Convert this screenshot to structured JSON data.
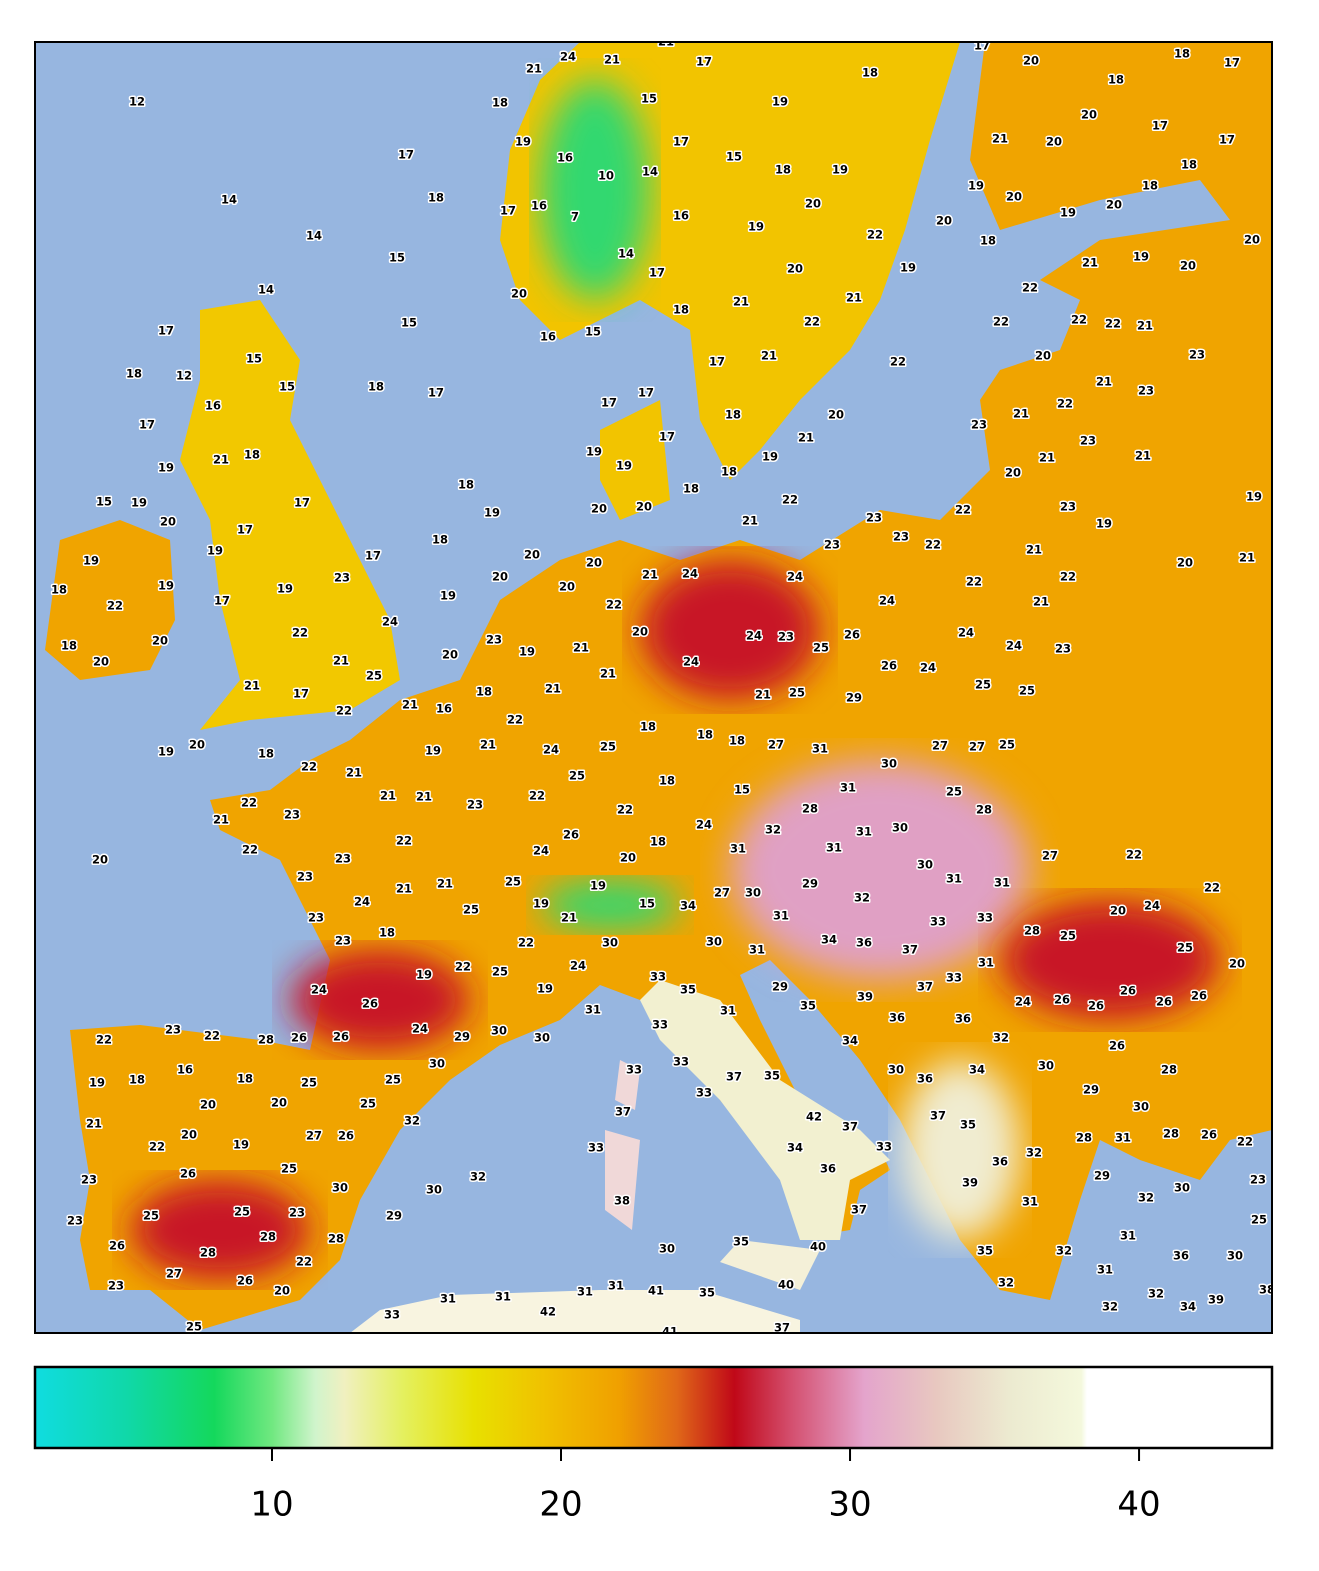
{
  "colorbar": {
    "lim": [
      1.8,
      44.6
    ],
    "ticks": [
      10,
      20,
      30,
      40
    ],
    "colormap": [
      {
        "value": 1.8,
        "color": "#10dce0"
      },
      {
        "value": 5,
        "color": "#10d8a8"
      },
      {
        "value": 8,
        "color": "#14d85c"
      },
      {
        "value": 10,
        "color": "#70e880"
      },
      {
        "value": 11.5,
        "color": "#d0f4cc"
      },
      {
        "value": 12.5,
        "color": "#f0f0c0"
      },
      {
        "value": 14.5,
        "color": "#e4f060"
      },
      {
        "value": 17,
        "color": "#e8e000"
      },
      {
        "value": 19.5,
        "color": "#f0c000"
      },
      {
        "value": 22,
        "color": "#f0a000"
      },
      {
        "value": 24,
        "color": "#e06818"
      },
      {
        "value": 26,
        "color": "#c00818"
      },
      {
        "value": 28,
        "color": "#d45070"
      },
      {
        "value": 30.5,
        "color": "#e4a4cc"
      },
      {
        "value": 33,
        "color": "#e8c8c0"
      },
      {
        "value": 35.5,
        "color": "#ecead0"
      },
      {
        "value": 38,
        "color": "#f4f8dc"
      },
      {
        "value": 38.2,
        "color": "#ffffff"
      },
      {
        "value": 44.6,
        "color": "#ffffff"
      }
    ]
  },
  "labels": [
    21,
    24,
    21,
    21,
    17,
    15,
    18,
    19,
    18,
    12,
    19,
    16,
    17,
    15,
    10,
    14,
    18,
    19,
    17,
    14,
    18,
    17,
    16,
    7,
    16,
    19,
    20,
    22,
    14,
    15,
    14,
    17,
    20,
    19,
    20,
    14,
    21,
    21,
    18,
    15,
    16,
    15,
    22,
    17,
    15,
    17,
    21,
    22,
    18,
    12,
    15,
    18,
    17,
    16,
    17,
    17,
    17,
    18,
    20,
    17,
    21,
    19,
    19,
    18,
    21,
    19,
    18,
    18,
    19,
    18,
    19,
    20,
    20,
    22,
    21,
    15,
    19,
    20,
    17,
    17,
    18,
    20,
    20,
    21,
    24,
    24,
    23,
    23,
    23,
    22,
    22,
    19,
    19,
    17,
    20,
    20,
    22,
    19,
    19,
    18,
    19,
    23,
    22,
    17,
    24,
    20,
    24,
    23,
    25,
    26,
    24,
    24,
    22,
    20,
    18,
    20,
    22,
    23,
    19,
    21,
    24,
    26,
    24,
    24,
    23,
    20,
    21,
    25,
    21,
    21,
    21,
    17,
    18,
    21,
    25,
    29,
    25,
    25,
    21,
    16,
    22,
    22,
    18,
    18,
    18,
    27,
    31,
    27,
    27,
    25,
    19,
    20,
    18,
    19,
    21,
    24,
    25,
    22,
    21,
    25,
    18,
    30,
    22,
    23,
    21,
    21,
    21,
    23,
    22,
    22,
    15,
    28,
    31,
    25,
    28,
    22,
    22,
    26,
    24,
    24,
    32,
    31,
    30,
    18,
    31,
    31,
    20,
    23,
    20,
    27,
    22,
    23,
    21,
    21,
    25,
    19,
    27,
    30,
    29,
    32,
    30,
    31,
    31,
    22,
    23,
    24,
    25,
    19,
    21,
    15,
    34,
    31,
    20,
    24,
    23,
    18,
    22,
    30,
    30,
    31,
    34,
    36,
    37,
    33,
    33,
    28,
    25,
    25,
    19,
    22,
    25,
    24,
    33,
    35,
    29,
    37,
    33,
    31,
    20,
    24,
    26,
    19,
    31,
    31,
    35,
    39,
    36,
    36,
    24,
    26,
    26,
    26,
    26,
    26,
    22,
    23,
    22,
    28,
    26,
    26,
    24,
    29,
    30,
    30,
    33,
    34,
    32,
    26,
    19,
    18,
    16,
    18,
    25,
    25,
    30,
    33,
    33,
    37,
    35,
    30,
    36,
    34,
    30,
    28,
    20,
    20,
    25,
    32,
    33,
    42,
    37,
    29,
    30,
    21,
    20,
    22,
    19,
    27,
    26,
    37,
    33,
    34,
    33,
    37,
    35,
    28,
    31,
    28,
    26,
    22,
    23,
    26,
    25,
    30,
    30,
    32,
    36,
    36,
    32,
    29,
    30,
    23,
    23,
    25,
    25,
    23,
    29,
    38,
    37,
    39,
    31,
    32,
    25,
    26,
    28,
    28,
    28,
    30,
    35,
    40,
    31,
    36,
    30,
    35,
    32,
    23,
    27,
    26,
    22,
    20,
    31,
    32,
    40,
    32,
    31,
    31,
    31,
    31,
    41,
    35,
    39,
    38,
    34,
    32,
    33,
    42,
    25,
    41,
    37,
    17,
    20,
    18,
    17,
    18,
    20,
    17,
    17,
    21,
    20,
    18,
    19,
    20,
    18,
    19,
    20,
    20,
    18,
    20,
    21,
    19,
    20,
    22,
    22,
    22,
    22,
    21,
    23,
    20,
    21,
    23,
    22,
    23,
    21,
    23,
    21,
    21,
    20,
    23,
    19,
    19,
    21,
    22,
    20,
    21,
    21
  ]
}
